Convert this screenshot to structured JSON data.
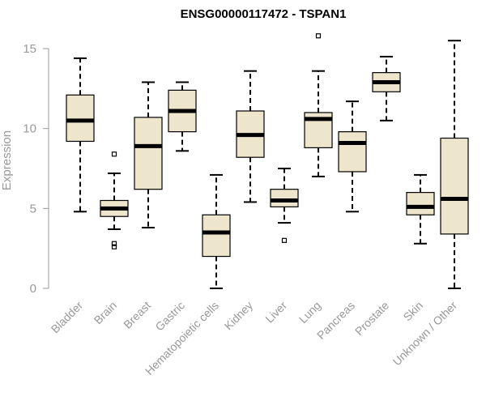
{
  "chart_data": {
    "type": "boxplot",
    "title": "ENSG00000117472 - TSPAN1",
    "xlabel": "",
    "ylabel": "Expression",
    "ylim": [
      0,
      15
    ],
    "yticks": [
      0,
      5,
      10,
      15
    ],
    "grid": false,
    "box_color": "#EDE5CC",
    "median_color": "#000000",
    "categories": [
      "Bladder",
      "Brain",
      "Breast",
      "Gastric",
      "Hematopoietic cells",
      "Kidney",
      "Liver",
      "Lung",
      "Pancreas",
      "Prostate",
      "Skin",
      "Unknown / Other"
    ],
    "boxes": [
      {
        "category": "Bladder",
        "min": 4.8,
        "q1": 9.2,
        "median": 10.5,
        "q3": 12.1,
        "max": 14.4,
        "outliers": []
      },
      {
        "category": "Brain",
        "min": 3.7,
        "q1": 4.5,
        "median": 5.0,
        "q3": 5.5,
        "max": 7.2,
        "outliers": [
          8.4,
          2.8,
          2.6
        ]
      },
      {
        "category": "Breast",
        "min": 3.8,
        "q1": 6.2,
        "median": 8.9,
        "q3": 10.7,
        "max": 12.9,
        "outliers": []
      },
      {
        "category": "Gastric",
        "min": 8.6,
        "q1": 9.8,
        "median": 11.1,
        "q3": 12.4,
        "max": 12.9,
        "outliers": []
      },
      {
        "category": "Hematopoietic cells",
        "min": 0.0,
        "q1": 2.0,
        "median": 3.5,
        "q3": 4.6,
        "max": 7.1,
        "outliers": []
      },
      {
        "category": "Kidney",
        "min": 5.4,
        "q1": 8.2,
        "median": 9.6,
        "q3": 11.1,
        "max": 13.6,
        "outliers": []
      },
      {
        "category": "Liver",
        "min": 4.1,
        "q1": 5.1,
        "median": 5.5,
        "q3": 6.2,
        "max": 7.5,
        "outliers": [
          3.0
        ]
      },
      {
        "category": "Lung",
        "min": 7.0,
        "q1": 8.8,
        "median": 10.6,
        "q3": 11.0,
        "max": 13.6,
        "outliers": [
          15.8
        ]
      },
      {
        "category": "Pancreas",
        "min": 4.8,
        "q1": 7.3,
        "median": 9.1,
        "q3": 9.8,
        "max": 11.7,
        "outliers": []
      },
      {
        "category": "Prostate",
        "min": 10.5,
        "q1": 12.3,
        "median": 12.9,
        "q3": 13.5,
        "max": 14.5,
        "outliers": []
      },
      {
        "category": "Skin",
        "min": 2.8,
        "q1": 4.6,
        "median": 5.1,
        "q3": 6.0,
        "max": 7.1,
        "outliers": []
      },
      {
        "category": "Unknown / Other",
        "min": 0.0,
        "q1": 3.4,
        "median": 5.6,
        "q3": 9.4,
        "max": 15.5,
        "outliers": []
      }
    ]
  }
}
